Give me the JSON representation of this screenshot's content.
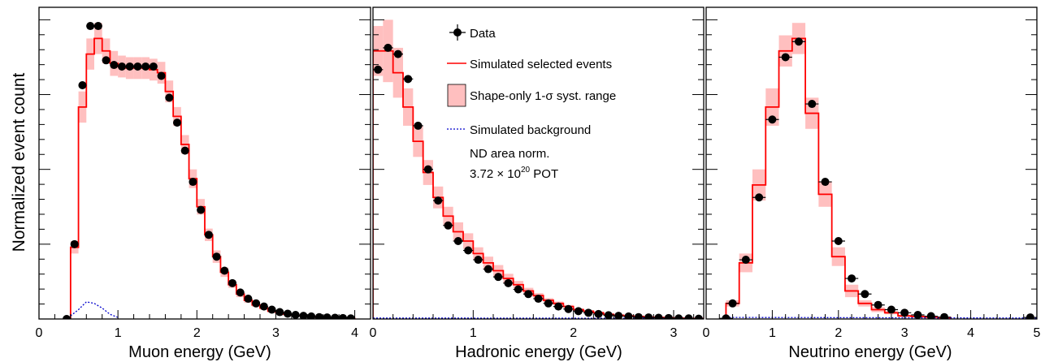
{
  "ylabel": "Normalized event count",
  "colors": {
    "simulated": "#ff0000",
    "band": "#ffbfbf",
    "data": "#000000",
    "background": "#0000cc"
  },
  "legend": {
    "data": "Data",
    "simulated": "Simulated selected events",
    "syst": "Shape-only 1-σ syst. range",
    "background": "Simulated background",
    "norm": "ND area norm.",
    "pot_prefix": "3.72 × 10",
    "pot_exp": "20",
    "pot_suffix": " POT"
  },
  "chart_data": [
    {
      "type": "histogram",
      "xlabel": "Muon energy (GeV)",
      "xlim": [
        0,
        4.2
      ],
      "ylim": [
        0,
        1.0
      ],
      "xticks": [
        0,
        1,
        2,
        3,
        4
      ],
      "xtick_labels": [
        "0",
        "1",
        "2",
        "3",
        "4"
      ],
      "bin_width": 0.1,
      "edges_start": 0.4,
      "sim": [
        0.23,
        0.68,
        0.85,
        0.9,
        0.86,
        0.82,
        0.81,
        0.805,
        0.805,
        0.805,
        0.8,
        0.79,
        0.73,
        0.65,
        0.56,
        0.45,
        0.36,
        0.27,
        0.2,
        0.15,
        0.11,
        0.08,
        0.06,
        0.045,
        0.035,
        0.025,
        0.02,
        0.015,
        0.012,
        0.01,
        0.008,
        0.006,
        0.005,
        0.004,
        0.003,
        0.002
      ],
      "band": [
        0.02,
        0.05,
        0.05,
        0.05,
        0.04,
        0.04,
        0.035,
        0.035,
        0.035,
        0.035,
        0.035,
        0.035,
        0.035,
        0.03,
        0.03,
        0.03,
        0.025,
        0.02,
        0.02,
        0.015,
        0.01,
        0.01,
        0.008,
        0.006,
        0.005,
        0.004,
        0.003,
        0.003,
        0.002,
        0.002,
        0.002,
        0.001,
        0.001,
        0.001,
        0.001,
        0.001
      ],
      "data": [
        0.24,
        0.75,
        0.94,
        0.94,
        0.83,
        0.815,
        0.81,
        0.81,
        0.81,
        0.81,
        0.81,
        0.78,
        0.71,
        0.63,
        0.54,
        0.44,
        0.35,
        0.27,
        0.2,
        0.155,
        0.115,
        0.085,
        0.065,
        0.05,
        0.04,
        0.03,
        0.022,
        0.017,
        0.013,
        0.01,
        0.008,
        0.006,
        0.005,
        0.004,
        0.003,
        0.002
      ],
      "data_extra_x": [
        0.35
      ],
      "data_extra_y": [
        0.0
      ],
      "bkg_x": [
        0.4,
        0.5,
        0.6,
        0.7,
        0.8,
        0.9,
        1.0
      ],
      "bkg_y": [
        0.01,
        0.03,
        0.055,
        0.05,
        0.035,
        0.015,
        0.005
      ]
    },
    {
      "type": "histogram",
      "xlabel": "Hadronic energy (GeV)",
      "xlim": [
        0,
        3.3
      ],
      "ylim": [
        0,
        1.0
      ],
      "xticks": [
        0,
        1,
        2,
        3
      ],
      "xtick_labels": [
        "0",
        "1",
        "2",
        "3"
      ],
      "bin_width": 0.1,
      "edges_start": 0.0,
      "sim": [
        0.86,
        0.86,
        0.79,
        0.68,
        0.57,
        0.47,
        0.39,
        0.33,
        0.28,
        0.25,
        0.21,
        0.18,
        0.155,
        0.13,
        0.11,
        0.09,
        0.075,
        0.06,
        0.05,
        0.04,
        0.03,
        0.025,
        0.02,
        0.015,
        0.012,
        0.01,
        0.008,
        0.006,
        0.005,
        0.004,
        0.003,
        0.002,
        0.002
      ],
      "band": [
        0.08,
        0.1,
        0.08,
        0.06,
        0.05,
        0.04,
        0.035,
        0.03,
        0.03,
        0.025,
        0.02,
        0.02,
        0.018,
        0.015,
        0.012,
        0.01,
        0.008,
        0.007,
        0.006,
        0.005,
        0.004,
        0.003,
        0.003,
        0.002,
        0.002,
        0.002,
        0.001,
        0.001,
        0.001,
        0.001,
        0.001,
        0.001,
        0.001
      ],
      "data": [
        0.8,
        0.87,
        0.85,
        0.77,
        0.62,
        0.48,
        0.38,
        0.3,
        0.25,
        0.22,
        0.19,
        0.16,
        0.135,
        0.115,
        0.095,
        0.08,
        0.065,
        0.05,
        0.04,
        0.032,
        0.025,
        0.02,
        0.016,
        0.012,
        0.01,
        0.008,
        0.006,
        0.005,
        0.004,
        0.003,
        0.002,
        0.002,
        0.001
      ],
      "data_extra_x": [],
      "data_extra_y": [],
      "bkg_x": [
        0.0,
        3.3
      ],
      "bkg_y": [
        0.003,
        0.002
      ]
    },
    {
      "type": "histogram",
      "xlabel": "Neutrino energy (GeV)",
      "xlim": [
        0,
        5.0
      ],
      "ylim": [
        0,
        1.0
      ],
      "xticks": [
        0,
        1,
        2,
        3,
        4,
        5
      ],
      "xtick_labels": [
        "0",
        "1",
        "2",
        "3",
        "4",
        "5"
      ],
      "bin_width": 0.2,
      "edges_start": 0.3,
      "sim": [
        0.05,
        0.18,
        0.43,
        0.68,
        0.86,
        0.9,
        0.66,
        0.4,
        0.2,
        0.09,
        0.05,
        0.03,
        0.02,
        0.01,
        0.008,
        0.006,
        0.004
      ],
      "band": [
        0.01,
        0.03,
        0.05,
        0.06,
        0.05,
        0.05,
        0.05,
        0.04,
        0.03,
        0.02,
        0.01,
        0.008,
        0.005,
        0.004,
        0.003,
        0.002,
        0.002
      ],
      "data": [
        0.05,
        0.19,
        0.39,
        0.64,
        0.84,
        0.89,
        0.69,
        0.44,
        0.25,
        0.13,
        0.08,
        0.045,
        0.03,
        0.02,
        0.013,
        0.009,
        0.006
      ],
      "data_extra_x": [
        0.3,
        4.9
      ],
      "data_extra_y": [
        0.002,
        0.005
      ],
      "bkg_x": [
        0.3,
        5.0
      ],
      "bkg_y": [
        0.005,
        0.003
      ]
    }
  ]
}
